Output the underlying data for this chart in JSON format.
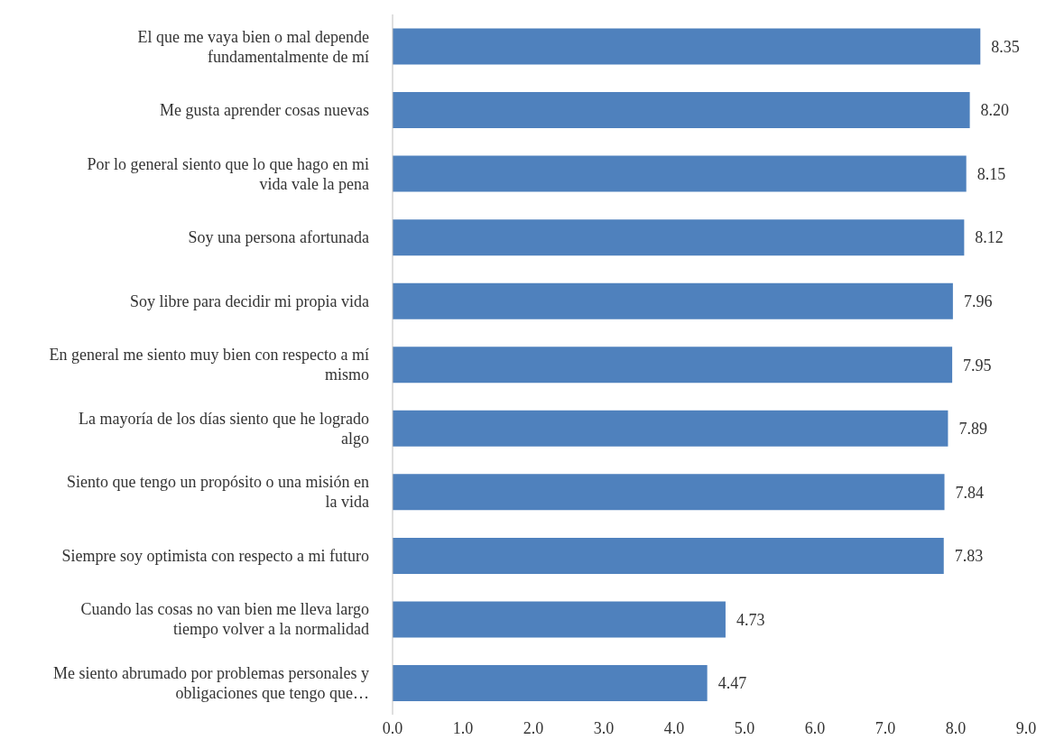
{
  "chart_data": {
    "type": "bar",
    "orientation": "horizontal",
    "categories": [
      "El que me vaya bien o mal depende fundamentalmente de mí",
      "Me gusta aprender cosas nuevas",
      "Por lo general siento que lo que hago en mi vida vale la pena",
      "Soy una persona afortunada",
      "Soy libre para decidir mi propia vida",
      "En general me siento muy bien con respecto a mí mismo",
      "La mayoría de los días siento que he logrado algo",
      "Siento que tengo un propósito o una misión en la vida",
      "Siempre soy optimista con respecto a mi futuro",
      "Cuando las cosas no van bien me lleva largo tiempo volver a la normalidad",
      "Me siento abrumado por problemas personales y obligaciones que tengo que…"
    ],
    "values": [
      8.35,
      8.2,
      8.15,
      8.12,
      7.96,
      7.95,
      7.89,
      7.84,
      7.83,
      4.73,
      4.47
    ],
    "value_labels": [
      "8.35",
      "8.20",
      "8.15",
      "8.12",
      "7.96",
      "7.95",
      "7.89",
      "7.84",
      "7.83",
      "4.73",
      "4.47"
    ],
    "color": "#4f81bd",
    "xlim": [
      0,
      9
    ],
    "xticks": [
      {
        "value": 0,
        "label": "0.0"
      },
      {
        "value": 1,
        "label": "1.0"
      },
      {
        "value": 2,
        "label": "2.0"
      },
      {
        "value": 3,
        "label": "3.0"
      },
      {
        "value": 4,
        "label": "4.0"
      },
      {
        "value": 5,
        "label": "5.0"
      },
      {
        "value": 6,
        "label": "6.0"
      },
      {
        "value": 7,
        "label": "7.0"
      },
      {
        "value": 8,
        "label": "8.0"
      },
      {
        "value": 9,
        "label": "9.0"
      }
    ],
    "grid": false
  }
}
